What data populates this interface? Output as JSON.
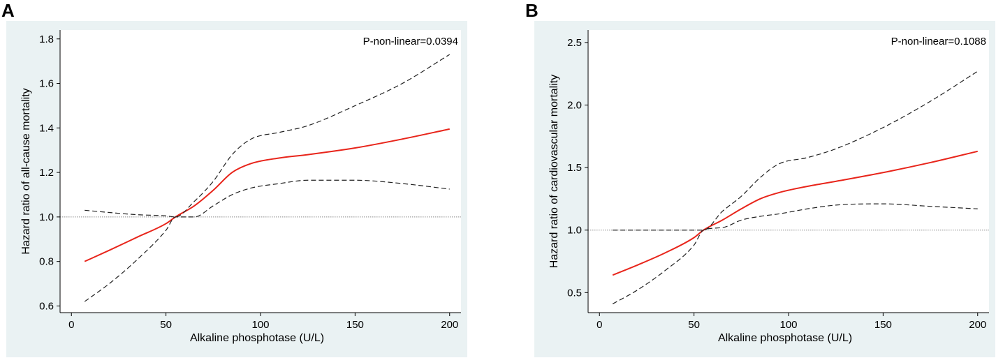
{
  "chart_data": [
    {
      "panel": "A",
      "type": "line",
      "title": "",
      "xlabel": "Alkaline phosphotase (U/L)",
      "ylabel": "Hazard ratio of all-cause mortality",
      "annotation": "P-non-linear=0.0394",
      "xlim": [
        -6,
        206
      ],
      "ylim": [
        0.57,
        1.84
      ],
      "xticks": [
        0,
        50,
        100,
        150,
        200
      ],
      "yticks": [
        0.6,
        0.8,
        1.0,
        1.2,
        1.4,
        1.6,
        1.8
      ],
      "xtick_labels": [
        "0",
        "50",
        "100",
        "150",
        "200"
      ],
      "ytick_labels": [
        "0.6",
        "0.8",
        "1.0",
        "1.2",
        "1.4",
        "1.6",
        "1.8"
      ],
      "reference_line": 1.0,
      "series": [
        {
          "name": "Hazard ratio",
          "style": "solid",
          "color": "#e8251b",
          "x": [
            7,
            20,
            35,
            50,
            55,
            65,
            75,
            85,
            95,
            110,
            125,
            150,
            175,
            200
          ],
          "y": [
            0.8,
            0.85,
            0.91,
            0.97,
            1.0,
            1.05,
            1.12,
            1.2,
            1.24,
            1.265,
            1.28,
            1.31,
            1.35,
            1.395
          ]
        },
        {
          "name": "Upper 95% CI",
          "style": "dashed",
          "color": "#222222",
          "x": [
            7,
            20,
            35,
            50,
            55,
            65,
            75,
            85,
            95,
            110,
            125,
            150,
            175,
            200
          ],
          "y": [
            1.03,
            1.02,
            1.01,
            1.005,
            1.0,
            1.07,
            1.16,
            1.28,
            1.35,
            1.38,
            1.41,
            1.5,
            1.6,
            1.73
          ]
        },
        {
          "name": "Lower 95% CI",
          "style": "dashed",
          "color": "#222222",
          "x": [
            7,
            20,
            35,
            50,
            55,
            65,
            75,
            85,
            95,
            110,
            125,
            150,
            175,
            200
          ],
          "y": [
            0.62,
            0.7,
            0.81,
            0.94,
            1.0,
            1.0,
            1.05,
            1.1,
            1.13,
            1.15,
            1.165,
            1.165,
            1.15,
            1.125
          ]
        }
      ]
    },
    {
      "panel": "B",
      "type": "line",
      "title": "",
      "xlabel": "Alkaline phosphotase (U/L)",
      "ylabel": "Hazard ratio of cardiovascular mortality",
      "annotation": "P-non-linear=0.1088",
      "xlim": [
        -6,
        206
      ],
      "ylim": [
        0.34,
        2.6
      ],
      "xticks": [
        0,
        50,
        100,
        150,
        200
      ],
      "yticks": [
        0.5,
        1.0,
        1.5,
        2.0,
        2.5
      ],
      "xtick_labels": [
        "0",
        "50",
        "100",
        "150",
        "200"
      ],
      "ytick_labels": [
        "0.5",
        "1.0",
        "1.5",
        "2.0",
        "2.5"
      ],
      "reference_line": 1.0,
      "series": [
        {
          "name": "Hazard ratio",
          "style": "solid",
          "color": "#e8251b",
          "x": [
            7,
            20,
            35,
            50,
            55,
            65,
            75,
            85,
            95,
            110,
            125,
            150,
            175,
            200
          ],
          "y": [
            0.64,
            0.72,
            0.82,
            0.94,
            1.0,
            1.08,
            1.17,
            1.25,
            1.3,
            1.35,
            1.39,
            1.46,
            1.54,
            1.63
          ]
        },
        {
          "name": "Upper 95% CI",
          "style": "dashed",
          "color": "#222222",
          "x": [
            7,
            20,
            35,
            50,
            55,
            65,
            75,
            85,
            95,
            110,
            125,
            150,
            175,
            200
          ],
          "y": [
            1.0,
            1.0,
            1.0,
            1.0,
            1.0,
            1.15,
            1.27,
            1.42,
            1.53,
            1.58,
            1.65,
            1.82,
            2.03,
            2.27
          ]
        },
        {
          "name": "Lower 95% CI",
          "style": "dashed",
          "color": "#222222",
          "x": [
            7,
            20,
            35,
            50,
            55,
            65,
            75,
            85,
            95,
            110,
            125,
            150,
            175,
            200
          ],
          "y": [
            0.41,
            0.52,
            0.68,
            0.88,
            1.0,
            1.02,
            1.08,
            1.11,
            1.13,
            1.17,
            1.2,
            1.21,
            1.19,
            1.17
          ]
        }
      ]
    }
  ],
  "panels": {
    "A": {
      "letter": "A"
    },
    "B": {
      "letter": "B"
    }
  },
  "colors": {
    "panel_background": "#eaf2f3",
    "plot_background": "#ffffff",
    "hazard_line": "#e8251b",
    "ci_line": "#222222",
    "reference_line": "#888888"
  }
}
